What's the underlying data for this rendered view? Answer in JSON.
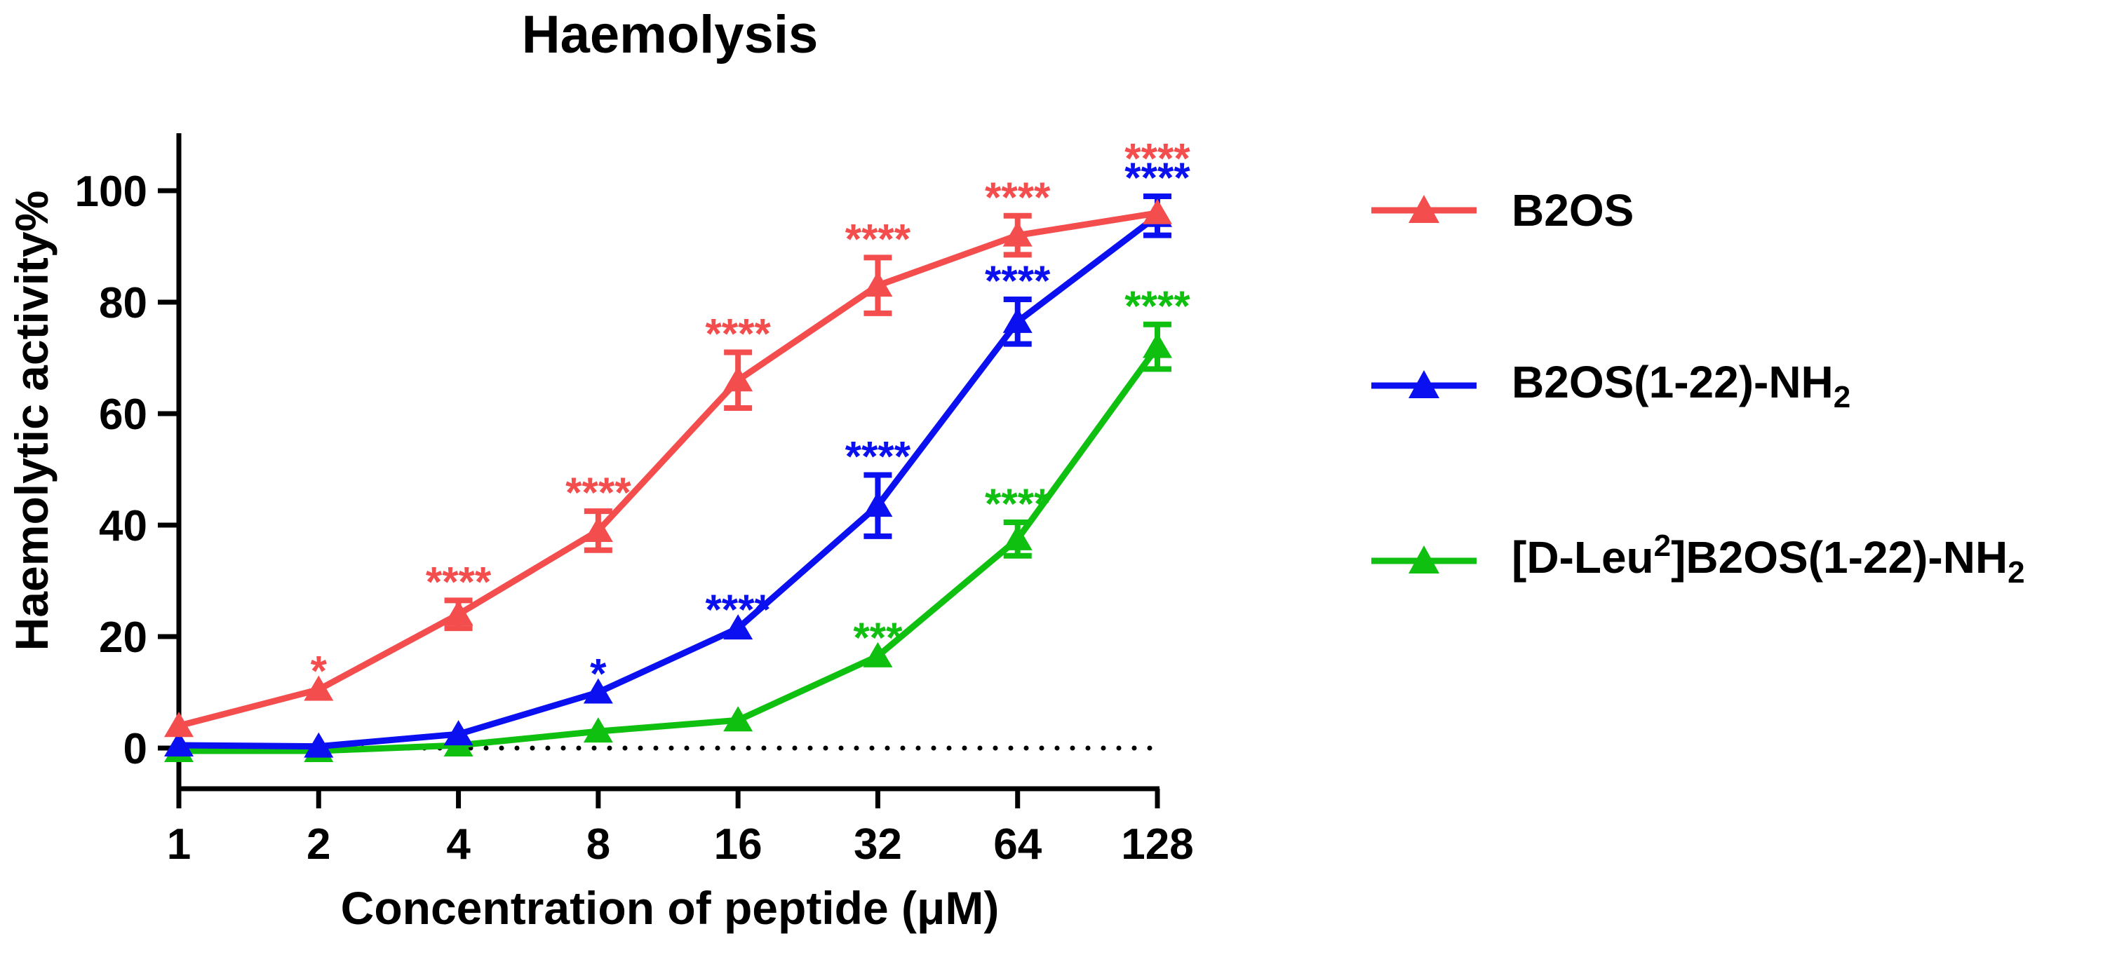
{
  "chart_data": {
    "type": "line",
    "title": "Haemolysis",
    "xlabel": "Concentration of peptide (μM)",
    "ylabel": "Haemolytic activity%",
    "x_scale": "log2",
    "x": [
      1,
      2,
      4,
      8,
      16,
      32,
      64,
      128
    ],
    "x_tick_labels": [
      "1",
      "2",
      "4",
      "8",
      "16",
      "32",
      "64",
      "128"
    ],
    "ylim": [
      -5,
      110
    ],
    "y_ticks": [
      0,
      20,
      40,
      60,
      80,
      100
    ],
    "y_tick_labels": [
      "0",
      "20",
      "40",
      "60",
      "80",
      "100"
    ],
    "reference_line": {
      "y": 0,
      "style": "dotted"
    },
    "legend_position": "right",
    "series": [
      {
        "name": "B2OS",
        "color": "#f44d4d",
        "values": [
          4,
          10.5,
          24,
          39,
          66,
          83,
          92,
          96
        ],
        "errors": [
          0,
          0,
          2.5,
          3.5,
          5,
          5,
          3.5,
          0
        ],
        "significance": [
          "",
          "*",
          "****",
          "****",
          "****",
          "****",
          "****",
          "****"
        ]
      },
      {
        "name": "B2OS(1-22)-NH2",
        "name_main": "B2OS(1-22)-NH",
        "name_sub": "2",
        "color": "#0a10f0",
        "values": [
          0.5,
          0.3,
          2.5,
          10,
          21.5,
          43.5,
          76.5,
          95.5
        ],
        "errors": [
          0,
          0,
          0,
          0,
          0,
          5.5,
          4,
          3.5
        ],
        "significance": [
          "",
          "",
          "",
          "*",
          "****",
          "****",
          "****",
          "****"
        ]
      },
      {
        "name": "[D-Leu2]B2OS(1-22)-NH2",
        "name_pre": "[D-Leu",
        "name_sup": "2",
        "name_mid": "]B2OS(1-22)-NH",
        "name_sub": "2",
        "color": "#10c010",
        "values": [
          -0.5,
          -0.5,
          0.5,
          3,
          5,
          16.5,
          37.5,
          72
        ],
        "errors": [
          0,
          0,
          0,
          0,
          0,
          0,
          3,
          4
        ],
        "significance": [
          "",
          "",
          "",
          "",
          "",
          "***",
          "****",
          "****"
        ]
      }
    ]
  }
}
